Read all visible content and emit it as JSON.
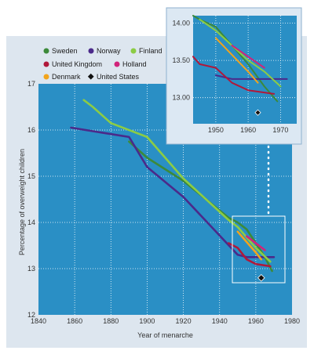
{
  "chart_data": [
    {
      "type": "line",
      "xlabel": "Year of menarche",
      "ylabel": "Percentage of overweight children",
      "xlim": [
        1840,
        1980
      ],
      "ylim": [
        12,
        17
      ],
      "xticks": [
        "1840",
        "1860",
        "1880",
        "1900",
        "1920",
        "1940",
        "1960",
        "1980"
      ],
      "yticks": [
        "12",
        "13",
        "14",
        "15",
        "16",
        "17"
      ],
      "legend_position": "top-left",
      "legend": [
        "Sweden",
        "Norway",
        "Finland",
        "United Kingdom",
        "Holland",
        "Denmark",
        "United States"
      ],
      "series": [
        {
          "name": "Sweden",
          "color": "#3c8a3a",
          "x": [
            1890,
            1900,
            1920,
            1945,
            1950,
            1955,
            1960,
            1965,
            1969
          ],
          "y": [
            15.75,
            15.4,
            14.9,
            14.1,
            14.0,
            13.85,
            13.55,
            13.25,
            12.95
          ]
        },
        {
          "name": "Norway",
          "color": "#4b2a8a",
          "x": [
            1858,
            1890,
            1900,
            1920,
            1950,
            1955,
            1960,
            1970
          ],
          "y": [
            16.05,
            15.85,
            15.2,
            14.55,
            13.3,
            13.25,
            13.25,
            13.25
          ]
        },
        {
          "name": "Finland",
          "color": "#8ccc45",
          "x": [
            1865,
            1870,
            1880,
            1900,
            1920,
            1945,
            1950,
            1960,
            1968
          ],
          "y": [
            16.65,
            16.5,
            16.15,
            15.85,
            14.95,
            14.05,
            13.9,
            13.45,
            13.15
          ]
        },
        {
          "name": "United Kingdom",
          "color": "#b0183a",
          "x": [
            1945,
            1950,
            1955,
            1960,
            1968
          ],
          "y": [
            13.55,
            13.45,
            13.2,
            13.1,
            13.05
          ]
        },
        {
          "name": "Holland",
          "color": "#d1237a",
          "x": [
            1955,
            1965
          ],
          "y": [
            13.7,
            13.4
          ]
        },
        {
          "name": "Denmark",
          "color": "#f2a41c",
          "x": [
            1950,
            1960,
            1963
          ],
          "y": [
            13.8,
            13.35,
            13.2
          ]
        },
        {
          "name": "United States",
          "color": "#111111",
          "marker": "diamond",
          "x": [
            1963
          ],
          "y": [
            12.8
          ]
        }
      ]
    },
    {
      "type": "line",
      "xlim": [
        1943,
        1975
      ],
      "ylim": [
        12.65,
        14.1
      ],
      "xticks": [
        "1950",
        "1960",
        "1970"
      ],
      "yticks": [
        "13.00",
        "13.50",
        "14.00"
      ],
      "series": [
        {
          "name": "Sweden",
          "color": "#3c8a3a",
          "x": [
            1943,
            1945,
            1950,
            1955,
            1960,
            1965,
            1969
          ],
          "y": [
            14.1,
            14.05,
            13.95,
            13.7,
            13.45,
            13.15,
            12.95
          ]
        },
        {
          "name": "Norway",
          "color": "#4b2a8a",
          "x": [
            1950,
            1955,
            1960,
            1965,
            1972
          ],
          "y": [
            13.3,
            13.25,
            13.25,
            13.25,
            13.25
          ]
        },
        {
          "name": "Finland",
          "color": "#8ccc45",
          "x": [
            1945,
            1950,
            1955,
            1960,
            1965,
            1970
          ],
          "y": [
            14.05,
            13.9,
            13.7,
            13.5,
            13.35,
            13.15
          ]
        },
        {
          "name": "United Kingdom",
          "color": "#b0183a",
          "x": [
            1943,
            1945,
            1950,
            1955,
            1960,
            1968
          ],
          "y": [
            13.55,
            13.45,
            13.4,
            13.2,
            13.1,
            13.05
          ]
        },
        {
          "name": "Holland",
          "color": "#d1237a",
          "x": [
            1955,
            1965
          ],
          "y": [
            13.7,
            13.4
          ]
        },
        {
          "name": "Denmark",
          "color": "#f2a41c",
          "x": [
            1950,
            1960,
            1963
          ],
          "y": [
            13.8,
            13.35,
            13.2
          ]
        },
        {
          "name": "United States",
          "color": "#111111",
          "marker": "diamond",
          "x": [
            1963
          ],
          "y": [
            12.8
          ]
        }
      ]
    }
  ]
}
